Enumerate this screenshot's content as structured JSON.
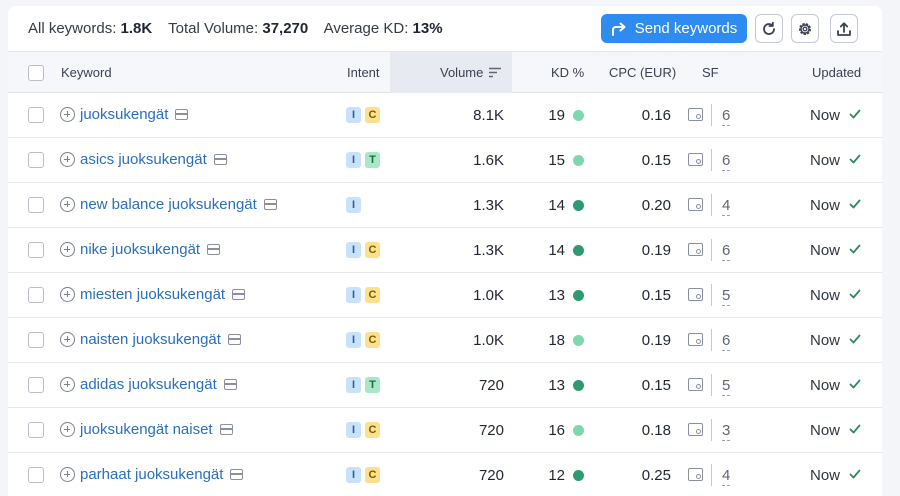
{
  "summary": {
    "all_keywords_label": "All keywords:",
    "all_keywords_value": "1.8K",
    "total_volume_label": "Total Volume:",
    "total_volume_value": "37,270",
    "avg_kd_label": "Average KD:",
    "avg_kd_value": "13%"
  },
  "toolbar": {
    "send_label": "Send keywords",
    "refresh_icon": "refresh-icon",
    "settings_icon": "gear-icon",
    "export_icon": "export-icon"
  },
  "columns": {
    "keyword": "Keyword",
    "intent": "Intent",
    "volume": "Volume",
    "kd": "KD %",
    "cpc": "CPC (EUR)",
    "sf": "SF",
    "updated": "Updated"
  },
  "colors": {
    "accent": "#2e8cf0",
    "kd_light": "#7dd8ab",
    "kd_dark": "#2f9a6f",
    "check": "#2f8a5c"
  },
  "rows": [
    {
      "keyword": "juoksukengät",
      "intent": [
        "I",
        "C"
      ],
      "volume": "8.1K",
      "kd": "19",
      "kd_color": "#7dd8ab",
      "cpc": "0.16",
      "sf": "6",
      "updated": "Now"
    },
    {
      "keyword": "asics juoksukengät",
      "intent": [
        "I",
        "T"
      ],
      "volume": "1.6K",
      "kd": "15",
      "kd_color": "#7dd8ab",
      "cpc": "0.15",
      "sf": "6",
      "updated": "Now"
    },
    {
      "keyword": "new balance juoksukengät",
      "intent": [
        "I"
      ],
      "volume": "1.3K",
      "kd": "14",
      "kd_color": "#2f9a6f",
      "cpc": "0.20",
      "sf": "4",
      "updated": "Now"
    },
    {
      "keyword": "nike juoksukengät",
      "intent": [
        "I",
        "C"
      ],
      "volume": "1.3K",
      "kd": "14",
      "kd_color": "#2f9a6f",
      "cpc": "0.19",
      "sf": "6",
      "updated": "Now"
    },
    {
      "keyword": "miesten juoksukengät",
      "intent": [
        "I",
        "C"
      ],
      "volume": "1.0K",
      "kd": "13",
      "kd_color": "#2f9a6f",
      "cpc": "0.15",
      "sf": "5",
      "updated": "Now"
    },
    {
      "keyword": "naisten juoksukengät",
      "intent": [
        "I",
        "C"
      ],
      "volume": "1.0K",
      "kd": "18",
      "kd_color": "#7dd8ab",
      "cpc": "0.19",
      "sf": "6",
      "updated": "Now"
    },
    {
      "keyword": "adidas juoksukengät",
      "intent": [
        "I",
        "T"
      ],
      "volume": "720",
      "kd": "13",
      "kd_color": "#2f9a6f",
      "cpc": "0.15",
      "sf": "5",
      "updated": "Now"
    },
    {
      "keyword": "juoksukengät naiset",
      "intent": [
        "I",
        "C"
      ],
      "volume": "720",
      "kd": "16",
      "kd_color": "#7dd8ab",
      "cpc": "0.18",
      "sf": "3",
      "updated": "Now"
    },
    {
      "keyword": "parhaat juoksukengät",
      "intent": [
        "I",
        "C"
      ],
      "volume": "720",
      "kd": "12",
      "kd_color": "#2f9a6f",
      "cpc": "0.25",
      "sf": "4",
      "updated": "Now"
    }
  ]
}
